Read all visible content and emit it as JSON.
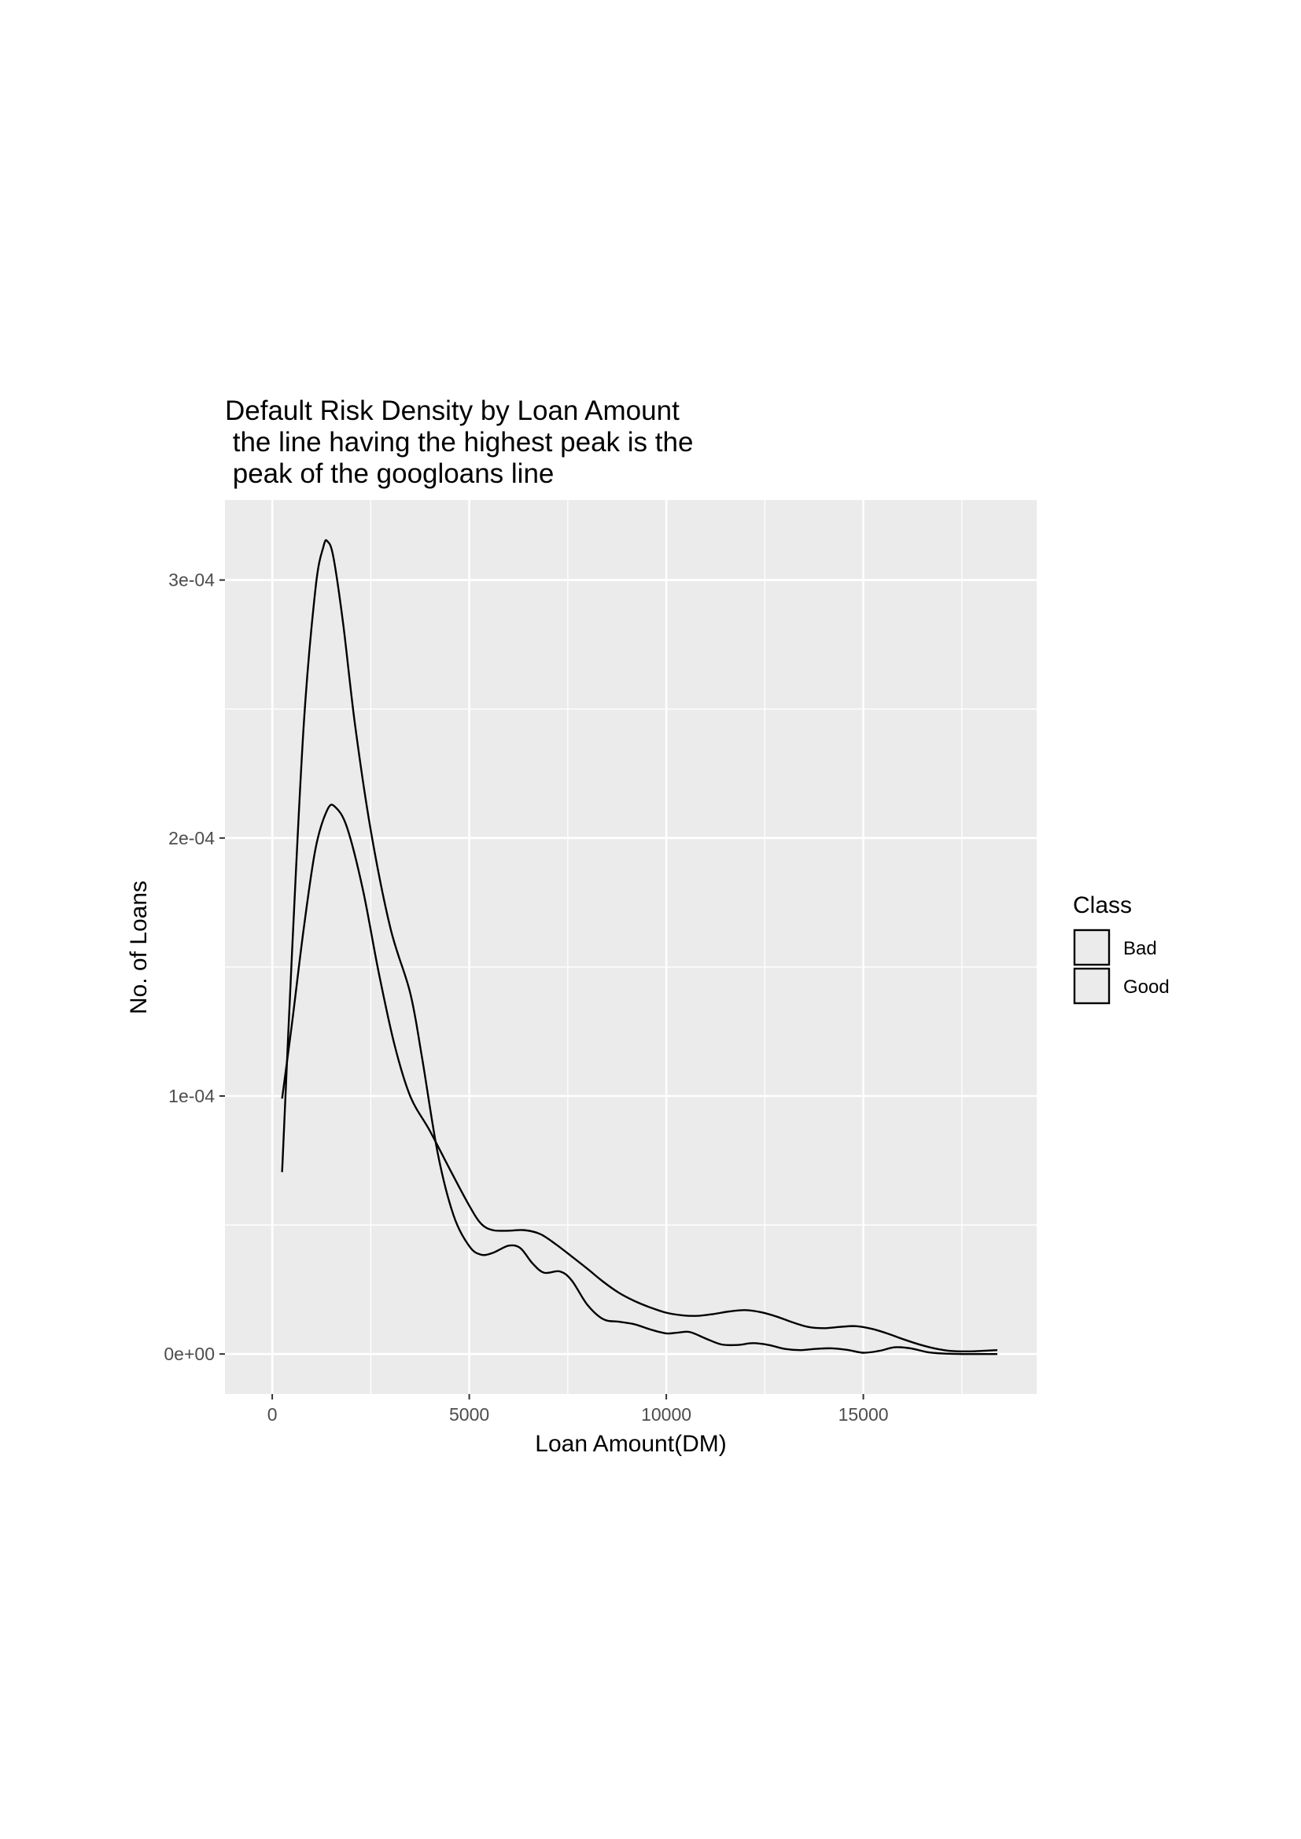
{
  "chart_data": {
    "type": "line",
    "title": [
      "Default Risk Density by Loan Amount",
      " the line having the highest peak is the",
      " peak of the googloans line"
    ],
    "xlabel": "Loan Amount(DM)",
    "ylabel": "No. of Loans",
    "xlim": [
      -1200,
      19400
    ],
    "ylim": [
      -1.55e-05,
      0.000331
    ],
    "x_ticks": [
      0,
      5000,
      10000,
      15000
    ],
    "x_tick_labels": [
      "0",
      "5000",
      "10000",
      "15000"
    ],
    "y_ticks": [
      0,
      0.0001,
      0.0002,
      0.0003
    ],
    "y_tick_labels": [
      "0e+00",
      "1e-04",
      "2e-04",
      "3e-04"
    ],
    "grid": true,
    "legend": {
      "title": "Class",
      "position": "right",
      "entries": [
        "Bad",
        "Good"
      ]
    },
    "colors": {
      "panel": "#ebebeb",
      "grid_major": "#ffffff",
      "line": "#000000",
      "legend_key": "#ebebeb"
    },
    "series": [
      {
        "points": [
          [
            250,
            7.05e-05
          ],
          [
            500,
            0.000155
          ],
          [
            800,
            0.000244
          ],
          [
            1100,
            0.000297
          ],
          [
            1300,
            0.000313
          ],
          [
            1400,
            0.000315
          ],
          [
            1550,
            0.000309
          ],
          [
            1800,
            0.000283
          ],
          [
            2100,
            0.000244
          ],
          [
            2500,
            0.000203
          ],
          [
            3000,
            0.000165
          ],
          [
            3500,
            0.00014
          ],
          [
            3800,
            0.000115
          ],
          [
            4200,
            7.78e-05
          ],
          [
            4600,
            5.38e-05
          ],
          [
            5000,
            4.18e-05
          ],
          [
            5300,
            3.85e-05
          ],
          [
            5600,
            3.92e-05
          ],
          [
            6000,
            4.2e-05
          ],
          [
            6300,
            4.1e-05
          ],
          [
            6600,
            3.52e-05
          ],
          [
            6900,
            3.15e-05
          ],
          [
            7300,
            3.2e-05
          ],
          [
            7600,
            2.85e-05
          ],
          [
            8000,
            1.9e-05
          ],
          [
            8400,
            1.35e-05
          ],
          [
            8800,
            1.25e-05
          ],
          [
            9200,
            1.15e-05
          ],
          [
            9600,
            9.5e-06
          ],
          [
            10000,
            8e-06
          ],
          [
            10300,
            8.3e-06
          ],
          [
            10600,
            8.5e-06
          ],
          [
            11000,
            6e-06
          ],
          [
            11400,
            3.7e-06
          ],
          [
            11800,
            3.5e-06
          ],
          [
            12200,
            4.2e-06
          ],
          [
            12600,
            3.5e-06
          ],
          [
            13000,
            2e-06
          ],
          [
            13400,
            1.5e-06
          ],
          [
            13800,
            2e-06
          ],
          [
            14200,
            2.2e-06
          ],
          [
            14600,
            1.6e-06
          ],
          [
            15000,
            5e-07
          ],
          [
            15400,
            1.2e-06
          ],
          [
            15800,
            2.6e-06
          ],
          [
            16200,
            2.2e-06
          ],
          [
            16600,
            8e-07
          ],
          [
            17000,
            2e-07
          ],
          [
            17500,
            0.0
          ],
          [
            18000,
            0.0
          ],
          [
            18400,
            0.0
          ]
        ]
      },
      {
        "points": [
          [
            250,
            9.9e-05
          ],
          [
            500,
            0.000128
          ],
          [
            800,
            0.000165
          ],
          [
            1100,
            0.000196
          ],
          [
            1400,
            0.000211
          ],
          [
            1600,
            0.000212
          ],
          [
            1900,
            0.000204
          ],
          [
            2300,
            0.00018
          ],
          [
            2700,
            0.000148
          ],
          [
            3100,
            0.00012
          ],
          [
            3500,
            0.0001
          ],
          [
            4000,
            8.65e-05
          ],
          [
            4500,
            7.18e-05
          ],
          [
            5000,
            5.75e-05
          ],
          [
            5300,
            5.05e-05
          ],
          [
            5600,
            4.8e-05
          ],
          [
            6000,
            4.78e-05
          ],
          [
            6400,
            4.8e-05
          ],
          [
            6800,
            4.65e-05
          ],
          [
            7200,
            4.25e-05
          ],
          [
            7600,
            3.78e-05
          ],
          [
            8000,
            3.3e-05
          ],
          [
            8400,
            2.8e-05
          ],
          [
            8800,
            2.37e-05
          ],
          [
            9200,
            2.05e-05
          ],
          [
            9600,
            1.8e-05
          ],
          [
            10000,
            1.6e-05
          ],
          [
            10400,
            1.5e-05
          ],
          [
            10800,
            1.48e-05
          ],
          [
            11200,
            1.55e-05
          ],
          [
            11600,
            1.65e-05
          ],
          [
            12000,
            1.7e-05
          ],
          [
            12400,
            1.62e-05
          ],
          [
            12800,
            1.45e-05
          ],
          [
            13200,
            1.23e-05
          ],
          [
            13600,
            1.05e-05
          ],
          [
            14000,
            1e-05
          ],
          [
            14400,
            1.05e-05
          ],
          [
            14800,
            1.08e-05
          ],
          [
            15200,
            9.8e-06
          ],
          [
            15600,
            8e-06
          ],
          [
            16000,
            5.8e-06
          ],
          [
            16400,
            3.8e-06
          ],
          [
            16800,
            2.2e-06
          ],
          [
            17200,
            1.2e-06
          ],
          [
            17600,
            1e-06
          ],
          [
            18000,
            1.2e-06
          ],
          [
            18400,
            1.5e-06
          ]
        ]
      }
    ]
  }
}
